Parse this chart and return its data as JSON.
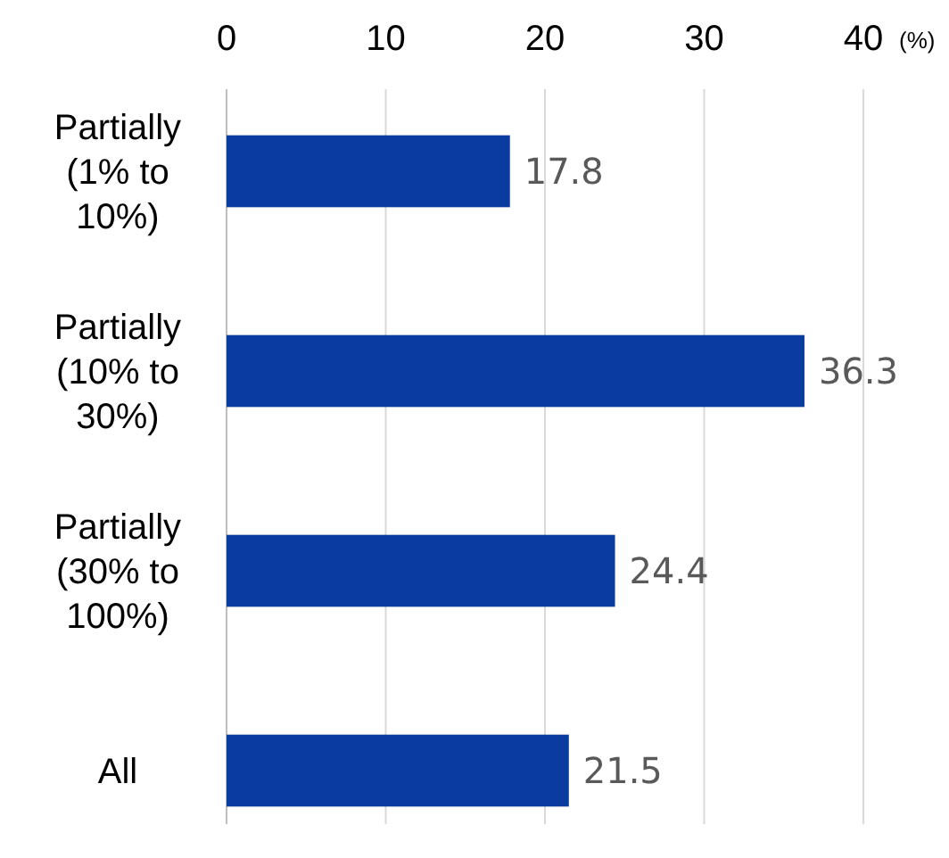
{
  "chart_data": {
    "type": "bar",
    "orientation": "horizontal",
    "categories": [
      "Partially (1% to 10%)",
      "Partially (10% to 30%)",
      "Partially (30% to 100%)",
      "All"
    ],
    "values": [
      17.8,
      36.3,
      24.4,
      21.5
    ],
    "color": "#0a3ca0",
    "xlim": [
      0,
      40
    ],
    "xticks": [
      0,
      10,
      20,
      30,
      40
    ],
    "xlabel": "(%)",
    "grid": "x",
    "data_labels": true
  }
}
